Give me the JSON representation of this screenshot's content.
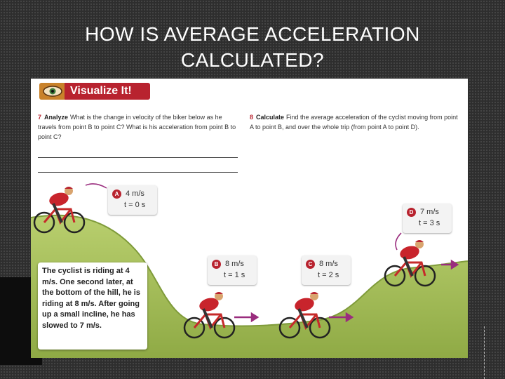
{
  "slide": {
    "title_line1": "HOW IS AVERAGE ACCELERATION",
    "title_line2": "CALCULATED?"
  },
  "panel": {
    "banner": "Visualize It!",
    "q7": {
      "number": "7",
      "keyword": "Analyze",
      "text": "What is the change in velocity of the biker below as he travels from point B to point C? What is his acceleration from point B to point C?"
    },
    "q8": {
      "number": "8",
      "keyword": "Calculate",
      "text": "Find the average acceleration of the cyclist moving from point A to point B, and over the whole trip (from point A to point D)."
    },
    "points": [
      {
        "letter": "A",
        "speed": "4 m/s",
        "time": "t = 0 s"
      },
      {
        "letter": "B",
        "speed": "8 m/s",
        "time": "t = 1 s"
      },
      {
        "letter": "C",
        "speed": "8 m/s",
        "time": "t = 2 s"
      },
      {
        "letter": "D",
        "speed": "7 m/s",
        "time": "t = 3 s"
      }
    ],
    "story": "The cyclist is riding at 4 m/s. One second later, at the bottom of the hill, he is riding at 8 m/s. After going up a small incline, he has slowed to 7 m/s."
  },
  "colors": {
    "accent_red": "#b8232f",
    "grass": "#a9c25b",
    "shirt": "#c8242c",
    "bike": "#c62a2a",
    "arrow": "#9a2d7e"
  },
  "icons": [
    "eye-icon",
    "cyclist-icon",
    "arrow-icon"
  ]
}
